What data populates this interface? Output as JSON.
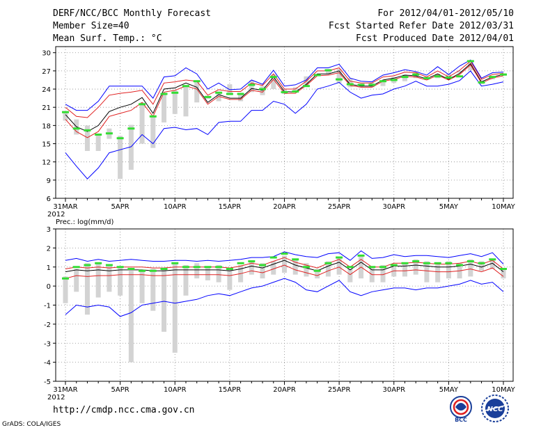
{
  "header": {
    "title": "DERF/NCC/BCC Monthly Forecast",
    "member_size": "Member Size=40",
    "variable": "Mean Surf. Temp.: °C",
    "for_period": "For 2012/04/01-2012/05/10",
    "fcst_started": "Fcst Started Refer Date 2012/03/31",
    "fcst_produced": "Fcst Produced Date 2012/04/01"
  },
  "footer": {
    "url": "http://cmdp.ncc.cma.gov.cn",
    "credit": "GrADS: COLA/IGES",
    "logo_left": "BCC",
    "logo_right": "NCC"
  },
  "colors": {
    "bar": "#d3d3d3",
    "green": "#33dd33",
    "blue": "#0000ff",
    "red": "#e02020",
    "mean": "#000000",
    "grid": "#888888"
  },
  "chart_data": [
    {
      "type": "line",
      "title": "Mean Surf. Temp.: °C",
      "x_tick_labels": [
        "31MAR",
        "5APR",
        "10APR",
        "15APR",
        "20APR",
        "25APR",
        "30APR",
        "5MAY",
        "10MAY"
      ],
      "x_tick_days": [
        0,
        5,
        10,
        15,
        20,
        25,
        30,
        35,
        40
      ],
      "year_label": "2012",
      "ylim": [
        6,
        31
      ],
      "y_ticks": [
        6,
        9,
        12,
        15,
        18,
        21,
        24,
        27,
        30
      ],
      "ensemble_bars": [
        [
          18.8,
          20.4
        ],
        [
          16.5,
          19.0
        ],
        [
          13.8,
          18.0
        ],
        [
          13.8,
          16.6
        ],
        [
          15.8,
          17.5
        ],
        [
          9.2,
          16.3
        ],
        [
          10.7,
          18.1
        ],
        [
          15.0,
          21.8
        ],
        [
          14.3,
          19.6
        ],
        [
          18.5,
          23.4
        ],
        [
          19.9,
          23.8
        ],
        [
          19.5,
          24.5
        ],
        [
          21.8,
          25.3
        ],
        [
          22.4,
          22.9
        ],
        [
          22.0,
          23.6
        ],
        [
          23.0,
          24.8
        ],
        [
          22.0,
          23.4
        ],
        [
          23.5,
          25.4
        ],
        [
          23.0,
          24.5
        ],
        [
          24.0,
          26.4
        ],
        [
          23.2,
          24.0
        ],
        [
          23.5,
          24.3
        ],
        [
          24.5,
          26.1
        ],
        [
          26.3,
          26.5
        ],
        [
          26.5,
          27.3
        ],
        [
          25.0,
          27.3
        ],
        [
          24.3,
          25.8
        ],
        [
          24.3,
          24.9
        ],
        [
          24.3,
          25.0
        ],
        [
          24.5,
          25.3
        ],
        [
          25.0,
          26.0
        ],
        [
          25.3,
          26.4
        ],
        [
          25.8,
          26.8
        ],
        [
          25.5,
          26.0
        ],
        [
          25.8,
          26.5
        ],
        [
          25.7,
          26.6
        ],
        [
          26.7,
          27.0
        ],
        [
          27.1,
          28.4
        ],
        [
          24.8,
          25.4
        ],
        [
          25.6,
          26.0
        ],
        [
          26.2,
          26.6
        ]
      ],
      "series": [
        {
          "name": "observed",
          "values": [
            20.2,
            17.5,
            17.2,
            16.5,
            16.7,
            15.9,
            17.5,
            21.5,
            19.5,
            23.2,
            23.4,
            24.5,
            25.3,
            22.7,
            23.4,
            23.2,
            23.2,
            24.7,
            24.0,
            26.0,
            23.5,
            23.6,
            24.5,
            26.3,
            27.1,
            25.6,
            24.8,
            24.7,
            24.7,
            25.3,
            25.5,
            26.0,
            26.4,
            25.8,
            26.1,
            25.9,
            26.1,
            28.6,
            25.1,
            26.0,
            26.4
          ]
        },
        {
          "name": "ensemble_max",
          "values": [
            21.5,
            20.5,
            20.5,
            22.0,
            24.5,
            24.5,
            24.5,
            24.5,
            22.5,
            26.0,
            26.2,
            27.5,
            26.5,
            24.0,
            25.0,
            23.9,
            24.0,
            25.5,
            24.8,
            27.1,
            24.5,
            24.7,
            25.5,
            27.5,
            27.5,
            28.1,
            25.8,
            25.3,
            25.2,
            26.3,
            26.7,
            27.2,
            26.9,
            26.3,
            27.7,
            26.4,
            27.8,
            28.8,
            25.8,
            26.7,
            26.8
          ]
        },
        {
          "name": "ensemble_upper",
          "values": [
            21.0,
            19.5,
            19.3,
            21.0,
            23.0,
            23.3,
            23.5,
            23.8,
            21.5,
            25.0,
            25.2,
            25.5,
            25.3,
            23.0,
            23.9,
            23.6,
            23.6,
            25.0,
            24.6,
            26.5,
            24.0,
            24.0,
            25.3,
            27.0,
            27.0,
            27.5,
            25.3,
            25.0,
            25.0,
            26.0,
            26.2,
            26.8,
            26.7,
            26.0,
            27.0,
            26.0,
            27.1,
            28.6,
            25.6,
            26.4,
            26.6
          ]
        },
        {
          "name": "ensemble_mean",
          "values": [
            19.8,
            17.8,
            17.0,
            18.0,
            20.3,
            21.0,
            21.5,
            22.6,
            20.0,
            24.0,
            24.2,
            25.0,
            24.3,
            21.8,
            23.1,
            22.5,
            22.5,
            24.1,
            23.8,
            26.0,
            23.6,
            23.5,
            24.8,
            26.5,
            26.5,
            27.0,
            24.8,
            24.5,
            24.5,
            25.5,
            25.8,
            26.3,
            26.2,
            25.7,
            26.5,
            25.6,
            26.6,
            28.2,
            25.2,
            26.0,
            26.4
          ]
        },
        {
          "name": "ensemble_lower",
          "values": [
            19.0,
            17.0,
            16.0,
            17.0,
            19.5,
            20.0,
            20.5,
            21.8,
            19.5,
            23.5,
            23.8,
            24.5,
            24.0,
            21.5,
            22.8,
            22.3,
            22.3,
            23.8,
            23.5,
            25.6,
            23.3,
            23.3,
            24.6,
            26.2,
            26.3,
            26.7,
            24.6,
            24.3,
            24.3,
            25.3,
            25.6,
            26.1,
            26.0,
            25.5,
            26.3,
            25.5,
            26.4,
            28.0,
            25.0,
            25.8,
            26.2
          ]
        },
        {
          "name": "ensemble_min",
          "values": [
            13.5,
            11.3,
            9.2,
            11.0,
            13.5,
            14.0,
            14.5,
            16.5,
            15.0,
            17.5,
            17.7,
            17.3,
            17.5,
            16.5,
            18.5,
            18.7,
            18.7,
            20.5,
            20.5,
            22.0,
            21.5,
            20.0,
            21.5,
            24.0,
            24.5,
            25.1,
            23.5,
            22.5,
            23.0,
            23.2,
            24.0,
            24.5,
            25.3,
            24.5,
            24.5,
            24.8,
            25.4,
            27.0,
            24.5,
            24.8,
            25.2
          ]
        }
      ]
    },
    {
      "type": "line",
      "title": "Prec.: log(mm/d)",
      "x_tick_labels": [
        "31MAR",
        "5APR",
        "10APR",
        "15APR",
        "20APR",
        "25APR",
        "30APR",
        "5MAY",
        "10MAY"
      ],
      "x_tick_days": [
        0,
        5,
        10,
        15,
        20,
        25,
        30,
        35,
        40
      ],
      "year_label": "2012",
      "ylim": [
        -5,
        3
      ],
      "y_ticks": [
        -5,
        -4,
        -3,
        -2,
        -1,
        0,
        1,
        2,
        3
      ],
      "ensemble_bars": [
        [
          -0.9,
          0.5
        ],
        [
          -0.3,
          0.9
        ],
        [
          -1.5,
          1.2
        ],
        [
          -0.6,
          1.2
        ],
        [
          -0.3,
          1.1
        ],
        [
          -0.5,
          1.0
        ],
        [
          -4.0,
          0.8
        ],
        [
          -0.9,
          0.8
        ],
        [
          -1.3,
          0.9
        ],
        [
          -2.4,
          0.9
        ],
        [
          -3.5,
          1.2
        ],
        [
          -0.5,
          1.1
        ],
        [
          0.4,
          1.2
        ],
        [
          0.3,
          1.0
        ],
        [
          0.2,
          1.1
        ],
        [
          -0.2,
          0.9
        ],
        [
          0.2,
          1.1
        ],
        [
          0.6,
          1.3
        ],
        [
          0.4,
          1.2
        ],
        [
          0.6,
          1.3
        ],
        [
          0.7,
          1.6
        ],
        [
          0.6,
          1.4
        ],
        [
          0.5,
          1.2
        ],
        [
          0.4,
          0.9
        ],
        [
          0.5,
          1.3
        ],
        [
          0.6,
          1.5
        ],
        [
          0.2,
          0.9
        ],
        [
          0.4,
          1.6
        ],
        [
          0.2,
          1.0
        ],
        [
          0.2,
          1.1
        ],
        [
          0.5,
          1.0
        ],
        [
          0.5,
          1.2
        ],
        [
          0.6,
          1.4
        ],
        [
          0.2,
          1.3
        ],
        [
          0.2,
          1.2
        ],
        [
          0.4,
          1.3
        ],
        [
          0.4,
          1.2
        ],
        [
          0.5,
          1.4
        ],
        [
          0.8,
          1.3
        ],
        [
          0.9,
          1.4
        ],
        [
          0.4,
          0.9
        ]
      ],
      "series": [
        {
          "name": "observed",
          "values": [
            0.4,
            1.0,
            1.1,
            1.2,
            1.1,
            1.0,
            0.9,
            0.8,
            0.8,
            0.9,
            1.2,
            1.0,
            1.0,
            1.0,
            1.0,
            0.9,
            1.2,
            1.3,
            1.1,
            1.5,
            1.7,
            1.4,
            1.0,
            0.8,
            1.2,
            1.5,
            1.0,
            1.6,
            1.0,
            1.0,
            1.1,
            1.2,
            1.3,
            1.2,
            1.2,
            1.2,
            1.1,
            1.3,
            1.2,
            1.4,
            0.9
          ]
        },
        {
          "name": "ensemble_max",
          "values": [
            1.35,
            1.45,
            1.3,
            1.4,
            1.3,
            1.35,
            1.4,
            1.35,
            1.3,
            1.3,
            1.35,
            1.35,
            1.3,
            1.35,
            1.3,
            1.35,
            1.4,
            1.5,
            1.5,
            1.55,
            1.8,
            1.65,
            1.55,
            1.5,
            1.7,
            1.75,
            1.35,
            1.85,
            1.45,
            1.5,
            1.65,
            1.55,
            1.6,
            1.6,
            1.55,
            1.5,
            1.6,
            1.7,
            1.55,
            1.75,
            1.15
          ]
        },
        {
          "name": "ensemble_upper",
          "values": [
            0.9,
            1.0,
            0.95,
            1.0,
            0.95,
            1.0,
            1.0,
            1.0,
            0.95,
            0.95,
            1.0,
            1.0,
            1.0,
            1.0,
            1.0,
            0.95,
            1.05,
            1.2,
            1.1,
            1.3,
            1.5,
            1.25,
            1.1,
            0.95,
            1.2,
            1.4,
            1.0,
            1.4,
            1.0,
            1.0,
            1.2,
            1.2,
            1.25,
            1.2,
            1.15,
            1.15,
            1.2,
            1.3,
            1.15,
            1.35,
            0.9
          ]
        },
        {
          "name": "ensemble_mean",
          "values": [
            0.75,
            0.85,
            0.8,
            0.85,
            0.8,
            0.85,
            0.85,
            0.85,
            0.8,
            0.8,
            0.85,
            0.85,
            0.85,
            0.85,
            0.85,
            0.8,
            0.9,
            1.05,
            0.95,
            1.15,
            1.35,
            1.1,
            0.95,
            0.8,
            1.05,
            1.25,
            0.85,
            1.25,
            0.85,
            0.85,
            1.05,
            1.05,
            1.1,
            1.05,
            1.0,
            1.0,
            1.05,
            1.15,
            1.0,
            1.2,
            0.75
          ]
        },
        {
          "name": "ensemble_lower",
          "values": [
            0.4,
            0.55,
            0.5,
            0.55,
            0.55,
            0.6,
            0.6,
            0.6,
            0.55,
            0.55,
            0.6,
            0.6,
            0.6,
            0.6,
            0.6,
            0.55,
            0.65,
            0.8,
            0.7,
            0.9,
            1.1,
            0.85,
            0.7,
            0.55,
            0.8,
            1.0,
            0.6,
            1.0,
            0.6,
            0.6,
            0.8,
            0.8,
            0.85,
            0.8,
            0.75,
            0.75,
            0.8,
            0.9,
            0.75,
            0.95,
            0.5
          ]
        },
        {
          "name": "ensemble_min",
          "values": [
            -1.5,
            -1.0,
            -1.1,
            -1.0,
            -1.1,
            -1.6,
            -1.4,
            -1.0,
            -0.9,
            -0.8,
            -0.9,
            -0.8,
            -0.7,
            -0.5,
            -0.4,
            -0.5,
            -0.3,
            -0.1,
            0.0,
            0.2,
            0.4,
            0.2,
            -0.2,
            -0.3,
            0.0,
            0.3,
            -0.3,
            -0.5,
            -0.3,
            -0.2,
            -0.1,
            -0.1,
            -0.2,
            -0.1,
            -0.1,
            0.0,
            0.1,
            0.3,
            0.1,
            0.2,
            -0.3
          ]
        }
      ]
    }
  ]
}
